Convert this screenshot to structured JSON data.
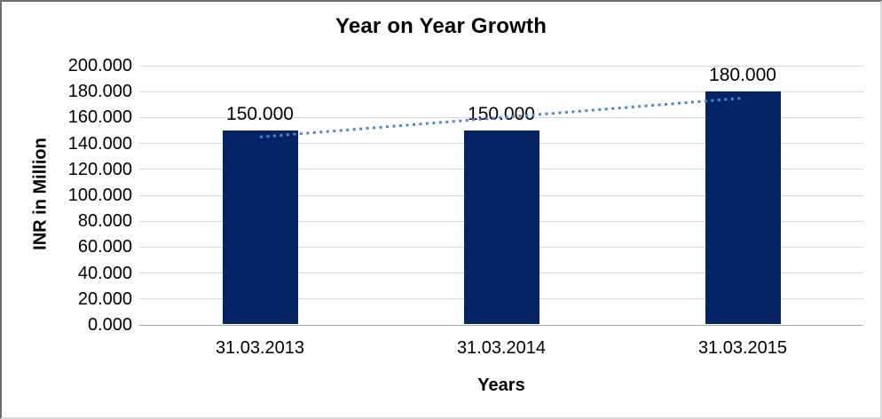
{
  "chart": {
    "title": "Year on Year Growth",
    "ylabel": "INR in Million",
    "xlabel": "Years"
  },
  "chart_data": {
    "type": "bar",
    "title": "Year on Year Growth",
    "xlabel": "Years",
    "ylabel": "INR in Million",
    "categories": [
      "31.03.2013",
      "31.03.2014",
      "31.03.2015"
    ],
    "values": [
      150,
      150,
      180
    ],
    "data_labels": [
      "150.000",
      "150.000",
      "180.000"
    ],
    "ylim": [
      0,
      200
    ],
    "ytick_step": 20,
    "ytick_labels": [
      "0.000",
      "20.000",
      "40.000",
      "60.000",
      "80.000",
      "100.000",
      "120.000",
      "140.000",
      "160.000",
      "180.000",
      "200.000"
    ],
    "grid": true,
    "legend": "none",
    "bar_color": "#042468",
    "gridline_color": "#d9d9d9",
    "axis_line_color": "#a6a6a6",
    "trendline": {
      "type": "linear",
      "style": "dotted",
      "color": "#4e87c9",
      "values": [
        145,
        160,
        175
      ]
    }
  }
}
